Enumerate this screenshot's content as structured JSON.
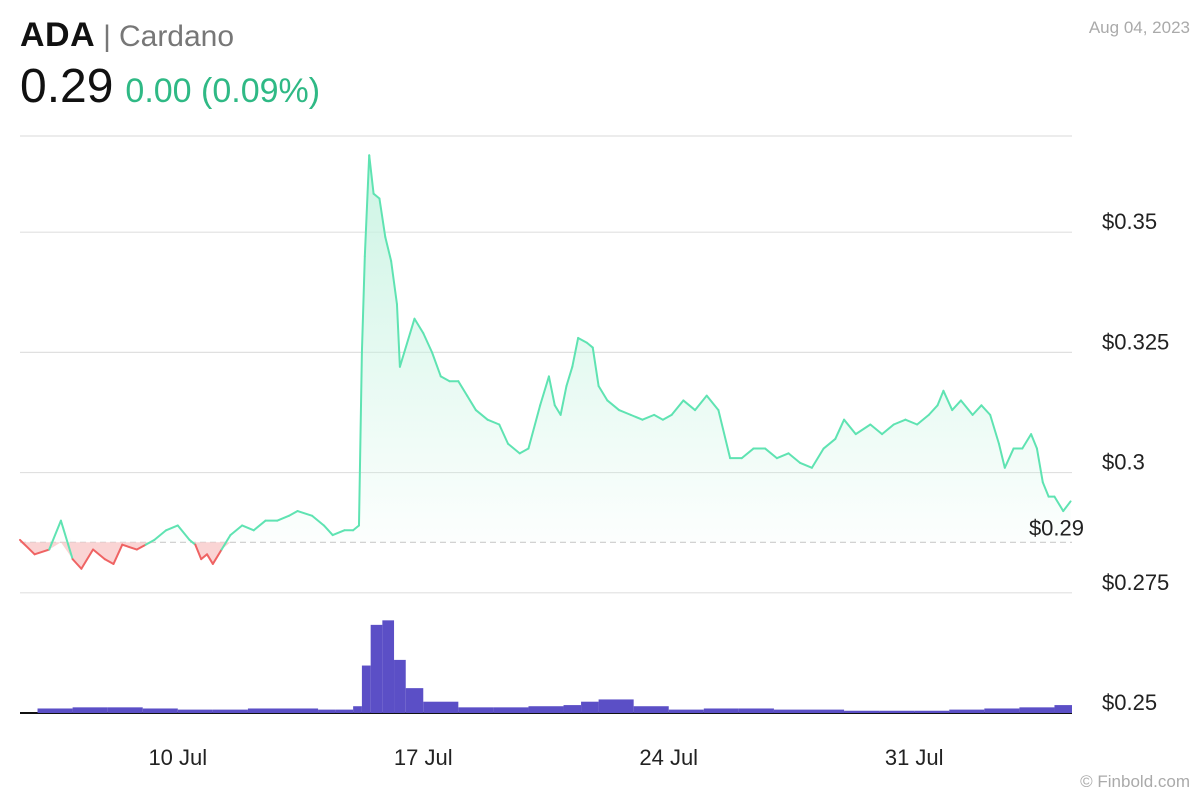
{
  "header": {
    "ticker": "ADA",
    "separator": "|",
    "name": "Cardano",
    "price": "0.29",
    "change": "0.00 (0.09%)",
    "date": "Aug 04, 2023"
  },
  "watermark": "© Finbold.com",
  "colors": {
    "up_line": "#5fe3b2",
    "up_fill": "#c7f3e1",
    "down_line": "#ef6363",
    "down_fill": "#f9cccc",
    "volume": "#5b4fc6",
    "grid": "#e0e0e0",
    "baseline": "#cccccc"
  },
  "chart_data": {
    "type": "area",
    "title": "ADA | Cardano",
    "baseline_value": 0.2855,
    "last_price_label": "$0.29",
    "ylim": [
      0.25,
      0.37
    ],
    "y_ticks": [
      {
        "value": 0.35,
        "label": "$0.35"
      },
      {
        "value": 0.325,
        "label": "$0.325"
      },
      {
        "value": 0.3,
        "label": "$0.3"
      },
      {
        "value": 0.275,
        "label": "$0.275"
      },
      {
        "value": 0.25,
        "label": "$0.25"
      }
    ],
    "x_range": [
      "2023-07-06",
      "2023-08-04"
    ],
    "x_ticks": [
      {
        "date": "2023-07-10",
        "label": "10 Jul"
      },
      {
        "date": "2023-07-17",
        "label": "17 Jul"
      },
      {
        "date": "2023-07-24",
        "label": "24 Jul"
      },
      {
        "date": "2023-07-31",
        "label": "31 Jul"
      }
    ],
    "series": [
      {
        "values": [
          [
            "2023-07-06 00:00",
            0.286
          ],
          [
            "2023-07-06 10:00",
            0.283
          ],
          [
            "2023-07-06 20:00",
            0.284
          ],
          [
            "2023-07-07 04:00",
            0.29
          ],
          [
            "2023-07-07 12:00",
            0.282
          ],
          [
            "2023-07-07 18:00",
            0.28
          ],
          [
            "2023-07-08 02:00",
            0.284
          ],
          [
            "2023-07-08 10:00",
            0.282
          ],
          [
            "2023-07-08 16:00",
            0.281
          ],
          [
            "2023-07-08 22:00",
            0.285
          ],
          [
            "2023-07-09 08:00",
            0.284
          ],
          [
            "2023-07-09 14:00",
            0.285
          ],
          [
            "2023-07-09 20:00",
            0.286
          ],
          [
            "2023-07-10 04:00",
            0.288
          ],
          [
            "2023-07-10 12:00",
            0.289
          ],
          [
            "2023-07-10 20:00",
            0.286
          ],
          [
            "2023-07-11 00:00",
            0.285
          ],
          [
            "2023-07-11 04:00",
            0.282
          ],
          [
            "2023-07-11 08:00",
            0.283
          ],
          [
            "2023-07-11 12:00",
            0.281
          ],
          [
            "2023-07-11 18:00",
            0.284
          ],
          [
            "2023-07-12 00:00",
            0.287
          ],
          [
            "2023-07-12 08:00",
            0.289
          ],
          [
            "2023-07-12 16:00",
            0.288
          ],
          [
            "2023-07-13 00:00",
            0.29
          ],
          [
            "2023-07-13 08:00",
            0.29
          ],
          [
            "2023-07-13 16:00",
            0.291
          ],
          [
            "2023-07-13 22:00",
            0.292
          ],
          [
            "2023-07-14 08:00",
            0.291
          ],
          [
            "2023-07-14 16:00",
            0.289
          ],
          [
            "2023-07-14 22:00",
            0.287
          ],
          [
            "2023-07-15 06:00",
            0.288
          ],
          [
            "2023-07-15 12:00",
            0.288
          ],
          [
            "2023-07-15 16:00",
            0.289
          ],
          [
            "2023-07-15 18:00",
            0.325
          ],
          [
            "2023-07-15 20:00",
            0.345
          ],
          [
            "2023-07-15 23:00",
            0.366
          ],
          [
            "2023-07-16 02:00",
            0.358
          ],
          [
            "2023-07-16 06:00",
            0.357
          ],
          [
            "2023-07-16 10:00",
            0.349
          ],
          [
            "2023-07-16 14:00",
            0.344
          ],
          [
            "2023-07-16 18:00",
            0.335
          ],
          [
            "2023-07-16 20:00",
            0.322
          ],
          [
            "2023-07-16 23:00",
            0.325
          ],
          [
            "2023-07-17 06:00",
            0.332
          ],
          [
            "2023-07-17 12:00",
            0.329
          ],
          [
            "2023-07-17 18:00",
            0.325
          ],
          [
            "2023-07-18 00:00",
            0.32
          ],
          [
            "2023-07-18 06:00",
            0.319
          ],
          [
            "2023-07-18 12:00",
            0.319
          ],
          [
            "2023-07-18 18:00",
            0.316
          ],
          [
            "2023-07-19 00:00",
            0.313
          ],
          [
            "2023-07-19 08:00",
            0.311
          ],
          [
            "2023-07-19 16:00",
            0.31
          ],
          [
            "2023-07-19 22:00",
            0.306
          ],
          [
            "2023-07-20 06:00",
            0.304
          ],
          [
            "2023-07-20 12:00",
            0.305
          ],
          [
            "2023-07-20 20:00",
            0.314
          ],
          [
            "2023-07-21 02:00",
            0.32
          ],
          [
            "2023-07-21 06:00",
            0.314
          ],
          [
            "2023-07-21 10:00",
            0.312
          ],
          [
            "2023-07-21 14:00",
            0.318
          ],
          [
            "2023-07-21 18:00",
            0.322
          ],
          [
            "2023-07-21 22:00",
            0.328
          ],
          [
            "2023-07-22 04:00",
            0.327
          ],
          [
            "2023-07-22 08:00",
            0.326
          ],
          [
            "2023-07-22 12:00",
            0.318
          ],
          [
            "2023-07-22 18:00",
            0.315
          ],
          [
            "2023-07-23 02:00",
            0.313
          ],
          [
            "2023-07-23 10:00",
            0.312
          ],
          [
            "2023-07-23 18:00",
            0.311
          ],
          [
            "2023-07-24 02:00",
            0.312
          ],
          [
            "2023-07-24 08:00",
            0.311
          ],
          [
            "2023-07-24 14:00",
            0.312
          ],
          [
            "2023-07-24 22:00",
            0.315
          ],
          [
            "2023-07-25 06:00",
            0.313
          ],
          [
            "2023-07-25 14:00",
            0.316
          ],
          [
            "2023-07-25 22:00",
            0.313
          ],
          [
            "2023-07-26 06:00",
            0.303
          ],
          [
            "2023-07-26 14:00",
            0.303
          ],
          [
            "2023-07-26 22:00",
            0.305
          ],
          [
            "2023-07-27 06:00",
            0.305
          ],
          [
            "2023-07-27 14:00",
            0.303
          ],
          [
            "2023-07-27 22:00",
            0.304
          ],
          [
            "2023-07-28 06:00",
            0.302
          ],
          [
            "2023-07-28 14:00",
            0.301
          ],
          [
            "2023-07-28 22:00",
            0.305
          ],
          [
            "2023-07-29 06:00",
            0.307
          ],
          [
            "2023-07-29 12:00",
            0.311
          ],
          [
            "2023-07-29 20:00",
            0.308
          ],
          [
            "2023-07-30 06:00",
            0.31
          ],
          [
            "2023-07-30 14:00",
            0.308
          ],
          [
            "2023-07-30 22:00",
            0.31
          ],
          [
            "2023-07-31 06:00",
            0.311
          ],
          [
            "2023-07-31 14:00",
            0.31
          ],
          [
            "2023-07-31 22:00",
            0.312
          ],
          [
            "2023-08-01 04:00",
            0.314
          ],
          [
            "2023-08-01 08:00",
            0.317
          ],
          [
            "2023-08-01 14:00",
            0.313
          ],
          [
            "2023-08-01 20:00",
            0.315
          ],
          [
            "2023-08-02 04:00",
            0.312
          ],
          [
            "2023-08-02 10:00",
            0.314
          ],
          [
            "2023-08-02 16:00",
            0.312
          ],
          [
            "2023-08-02 22:00",
            0.306
          ],
          [
            "2023-08-03 02:00",
            0.301
          ],
          [
            "2023-08-03 08:00",
            0.305
          ],
          [
            "2023-08-03 14:00",
            0.305
          ],
          [
            "2023-08-03 20:00",
            0.308
          ],
          [
            "2023-08-04 00:00",
            0.305
          ],
          [
            "2023-08-04 04:00",
            0.298
          ],
          [
            "2023-08-04 08:00",
            0.295
          ],
          [
            "2023-08-04 12:00",
            0.295
          ],
          [
            "2023-08-04 18:00",
            0.292
          ],
          [
            "2023-08-04 23:00",
            0.294
          ]
        ]
      }
    ],
    "volume": [
      [
        "2023-07-06",
        0.04
      ],
      [
        "2023-07-07",
        0.05
      ],
      [
        "2023-07-08",
        0.05
      ],
      [
        "2023-07-09",
        0.04
      ],
      [
        "2023-07-10",
        0.03
      ],
      [
        "2023-07-11",
        0.03
      ],
      [
        "2023-07-12",
        0.04
      ],
      [
        "2023-07-13",
        0.04
      ],
      [
        "2023-07-14",
        0.03
      ],
      [
        "2023-07-15 00:00",
        0.03
      ],
      [
        "2023-07-15 12:00",
        0.06
      ],
      [
        "2023-07-15 18:00",
        0.42
      ],
      [
        "2023-07-16 00:00",
        0.78
      ],
      [
        "2023-07-16 08:00",
        0.82
      ],
      [
        "2023-07-16 16:00",
        0.47
      ],
      [
        "2023-07-17 00:00",
        0.22
      ],
      [
        "2023-07-17 12:00",
        0.1
      ],
      [
        "2023-07-18",
        0.05
      ],
      [
        "2023-07-19",
        0.05
      ],
      [
        "2023-07-20",
        0.06
      ],
      [
        "2023-07-21",
        0.07
      ],
      [
        "2023-07-22 00:00",
        0.1
      ],
      [
        "2023-07-22 12:00",
        0.12
      ],
      [
        "2023-07-23",
        0.06
      ],
      [
        "2023-07-24",
        0.03
      ],
      [
        "2023-07-25",
        0.04
      ],
      [
        "2023-07-26",
        0.04
      ],
      [
        "2023-07-27",
        0.03
      ],
      [
        "2023-07-28",
        0.03
      ],
      [
        "2023-07-29",
        0.02
      ],
      [
        "2023-07-30",
        0.02
      ],
      [
        "2023-07-31",
        0.02
      ],
      [
        "2023-08-01",
        0.03
      ],
      [
        "2023-08-02",
        0.04
      ],
      [
        "2023-08-03",
        0.05
      ],
      [
        "2023-08-04",
        0.07
      ]
    ]
  }
}
